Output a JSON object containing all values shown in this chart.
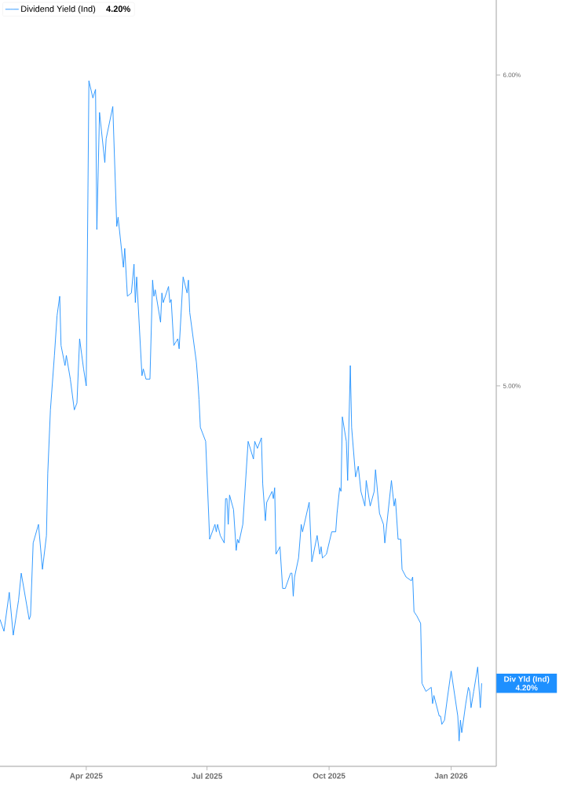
{
  "chart_data": {
    "type": "line",
    "x": [
      "2025-01-26",
      "2025-01-29",
      "2025-02-02",
      "2025-02-05",
      "2025-02-09",
      "2025-02-11",
      "2025-02-17",
      "2025-02-18",
      "2025-02-20",
      "2025-02-24",
      "2025-02-27",
      "2025-03-02",
      "2025-03-03",
      "2025-03-05",
      "2025-03-08",
      "2025-03-10",
      "2025-03-12",
      "2025-03-13",
      "2025-03-16",
      "2025-03-17",
      "2025-03-20",
      "2025-03-23",
      "2025-03-25",
      "2025-03-27",
      "2025-03-30",
      "2025-04-01",
      "2025-04-03",
      "2025-04-06",
      "2025-04-08",
      "2025-04-09",
      "2025-04-11",
      "2025-04-15",
      "2025-04-16",
      "2025-04-21",
      "2025-04-24",
      "2025-04-25",
      "2025-04-29",
      "2025-04-30",
      "2025-05-02",
      "2025-05-05",
      "2025-05-07",
      "2025-05-08",
      "2025-05-09",
      "2025-05-13",
      "2025-05-14",
      "2025-05-16",
      "2025-05-19",
      "2025-05-21",
      "2025-05-22",
      "2025-05-23",
      "2025-05-27",
      "2025-05-28",
      "2025-05-29",
      "2025-06-02",
      "2025-06-03",
      "2025-06-04",
      "2025-06-06",
      "2025-06-09",
      "2025-06-10",
      "2025-06-13",
      "2025-06-16",
      "2025-06-17",
      "2025-06-18",
      "2025-06-23",
      "2025-06-24",
      "2025-06-25",
      "2025-06-26",
      "2025-06-30",
      "2025-07-03",
      "2025-07-07",
      "2025-07-08",
      "2025-07-09",
      "2025-07-11",
      "2025-07-14",
      "2025-07-15",
      "2025-07-16",
      "2025-07-17",
      "2025-07-18",
      "2025-07-21",
      "2025-07-23",
      "2025-07-24",
      "2025-07-25",
      "2025-07-28",
      "2025-08-01",
      "2025-08-05",
      "2025-08-06",
      "2025-08-08",
      "2025-08-11",
      "2025-08-12",
      "2025-08-14",
      "2025-08-15",
      "2025-08-19",
      "2025-08-20",
      "2025-08-21",
      "2025-08-22",
      "2025-08-25",
      "2025-08-27",
      "2025-08-29",
      "2025-09-02",
      "2025-09-03",
      "2025-09-04",
      "2025-09-05",
      "2025-09-08",
      "2025-09-10",
      "2025-09-11",
      "2025-09-16",
      "2025-09-18",
      "2025-09-22",
      "2025-09-24",
      "2025-09-25",
      "2025-09-26",
      "2025-09-29",
      "2025-10-03",
      "2025-10-06",
      "2025-10-07",
      "2025-10-09",
      "2025-10-10",
      "2025-10-11",
      "2025-10-14",
      "2025-10-15",
      "2025-10-17",
      "2025-10-18",
      "2025-10-21",
      "2025-10-23",
      "2025-10-25",
      "2025-10-28",
      "2025-10-29",
      "2025-11-01",
      "2025-11-04",
      "2025-11-05",
      "2025-11-06",
      "2025-11-08",
      "2025-11-11",
      "2025-11-12",
      "2025-11-17",
      "2025-11-19",
      "2025-11-20",
      "2025-11-22",
      "2025-11-24",
      "2025-11-25",
      "2025-11-28",
      "2025-12-02",
      "2025-12-03",
      "2025-12-04",
      "2025-12-06",
      "2025-12-09",
      "2025-12-10",
      "2025-12-13",
      "2025-12-17",
      "2025-12-18",
      "2025-12-19",
      "2025-12-23",
      "2025-12-24",
      "2025-12-25",
      "2025-12-27",
      "2025-12-29",
      "2026-01-01",
      "2026-01-06",
      "2026-01-07",
      "2026-01-08",
      "2026-01-09",
      "2026-01-12",
      "2026-01-14",
      "2026-01-15",
      "2026-01-16",
      "2026-01-18",
      "2026-01-21",
      "2026-01-23",
      "2026-01-24"
    ],
    "series": [
      {
        "name": "Dividend Yield (Ind)",
        "color": "#1e90ff",
        "values": [
          4.36,
          4.33,
          4.43,
          4.32,
          4.41,
          4.48,
          4.36,
          4.37,
          4.56,
          4.61,
          4.49,
          4.58,
          4.75,
          4.93,
          5.09,
          5.21,
          5.27,
          5.12,
          5.06,
          5.09,
          5.02,
          4.93,
          4.95,
          5.14,
          5.05,
          5.0,
          5.98,
          5.92,
          5.95,
          5.48,
          5.87,
          5.7,
          5.78,
          5.89,
          5.49,
          5.52,
          5.36,
          5.42,
          5.27,
          5.28,
          5.37,
          5.25,
          5.33,
          5.03,
          5.05,
          5.02,
          5.02,
          5.32,
          5.27,
          5.29,
          5.19,
          5.28,
          5.25,
          5.3,
          5.25,
          5.26,
          5.12,
          5.14,
          5.11,
          5.33,
          5.28,
          5.32,
          5.22,
          5.07,
          5.02,
          4.96,
          4.88,
          4.84,
          4.57,
          4.61,
          4.59,
          4.61,
          4.58,
          4.56,
          4.68,
          4.68,
          4.61,
          4.69,
          4.65,
          4.54,
          4.57,
          4.56,
          4.61,
          4.84,
          4.79,
          4.84,
          4.82,
          4.85,
          4.72,
          4.62,
          4.67,
          4.7,
          4.68,
          4.71,
          4.53,
          4.55,
          4.44,
          4.44,
          4.48,
          4.48,
          4.42,
          4.47,
          4.52,
          4.61,
          4.59,
          4.67,
          4.51,
          4.58,
          4.53,
          4.55,
          4.52,
          4.53,
          4.59,
          4.59,
          4.64,
          4.71,
          4.7,
          4.91,
          4.84,
          4.73,
          5.06,
          4.88,
          4.74,
          4.77,
          4.7,
          4.66,
          4.73,
          4.66,
          4.7,
          4.76,
          4.72,
          4.64,
          4.61,
          4.56,
          4.73,
          4.66,
          4.68,
          4.57,
          4.57,
          4.49,
          4.47,
          4.46,
          4.47,
          4.38,
          4.37,
          4.35,
          4.2,
          4.18,
          4.19,
          4.15,
          4.17,
          4.12,
          4.12,
          4.1,
          4.11,
          4.16,
          4.23,
          4.12,
          4.06,
          4.11,
          4.08,
          4.15,
          4.19,
          4.18,
          4.14,
          4.18,
          4.24,
          4.14,
          4.2
        ]
      }
    ],
    "xlim": [
      "2025-01-26",
      "2026-02-04"
    ],
    "xticks": [
      {
        "value": "2025-04-01",
        "label": "Apr 2025"
      },
      {
        "value": "2025-07-01",
        "label": "Jul 2025"
      },
      {
        "value": "2025-10-01",
        "label": "Oct 2025"
      },
      {
        "value": "2026-01-01",
        "label": "Jan 2026"
      }
    ],
    "ylim": [
      4.0,
      6.27
    ],
    "yticks": [
      {
        "value": 5,
        "label": "5.00%"
      },
      {
        "value": 6,
        "label": "6.00%"
      }
    ],
    "log": "y",
    "legend": "top left",
    "marker": "none",
    "line_style": "solid",
    "annotations": [
      "4.20%",
      "Div Yld (Ind)",
      "4.20%"
    ]
  }
}
